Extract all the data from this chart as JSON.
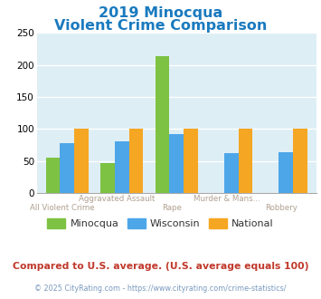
{
  "title_line1": "2019 Minocqua",
  "title_line2": "Violent Crime Comparison",
  "title_color": "#1a7abf",
  "categories": [
    "All Violent Crime",
    "Aggravated Assault",
    "Rape",
    "Murder & Mans...",
    "Robbery"
  ],
  "cat_labels_top": [
    "",
    "Aggravated Assault",
    "",
    "Murder & Mans...",
    ""
  ],
  "cat_labels_bot": [
    "All Violent Crime",
    "",
    "Rape",
    "",
    "Robbery"
  ],
  "minocqua": [
    55,
    47,
    213,
    0,
    0
  ],
  "wisconsin": [
    78,
    80,
    92,
    62,
    63
  ],
  "national": [
    100,
    100,
    100,
    100,
    100
  ],
  "color_minocqua": "#7dc242",
  "color_wisconsin": "#4da6e8",
  "color_national": "#f5a623",
  "ylim": [
    0,
    250
  ],
  "yticks": [
    0,
    50,
    100,
    150,
    200,
    250
  ],
  "plot_bg": "#deeef5",
  "footer_text": "Compared to U.S. average. (U.S. average equals 100)",
  "footer_color": "#c0392b",
  "credit_text": "© 2025 CityRating.com - https://www.cityrating.com/crime-statistics/",
  "credit_color": "#7a9abf",
  "label_color": "#b0a090"
}
